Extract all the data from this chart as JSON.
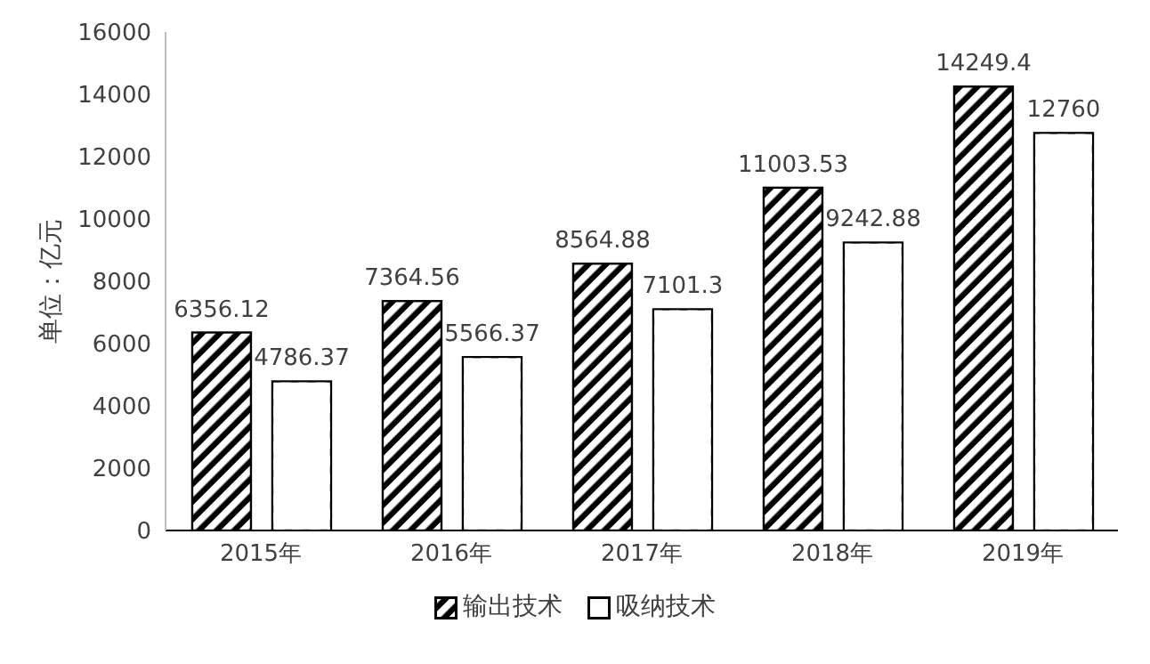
{
  "chart_data": {
    "type": "bar",
    "ylabel": "单位：亿元",
    "categories": [
      "2015年",
      "2016年",
      "2017年",
      "2018年",
      "2019年"
    ],
    "series": [
      {
        "name": "输出技术",
        "color": "#000000",
        "values": [
          6356.12,
          7364.56,
          8564.88,
          11003.53,
          14249.4
        ]
      },
      {
        "name": "吸纳技术",
        "color": "#ffffff",
        "values": [
          4786.37,
          5566.37,
          7101.3,
          9242.88,
          12760
        ]
      }
    ],
    "ylim": [
      0,
      16000
    ],
    "yticks": [
      0,
      2000,
      4000,
      6000,
      8000,
      10000,
      12000,
      14000,
      16000
    ],
    "grid": false,
    "legend": "bottom",
    "data_labels": true
  }
}
